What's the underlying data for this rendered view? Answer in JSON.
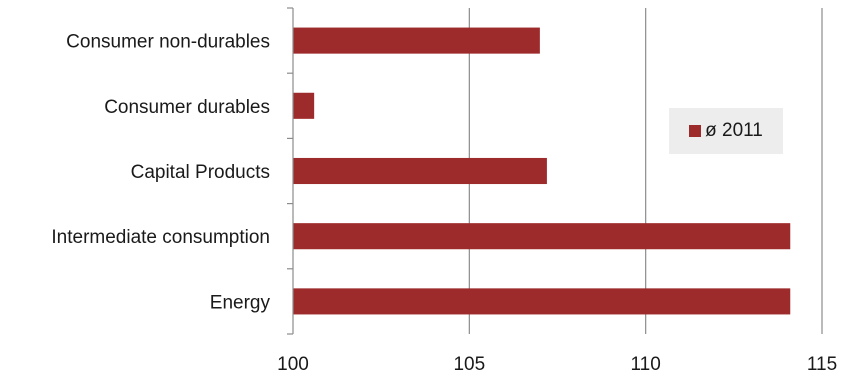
{
  "chart_data": {
    "type": "bar",
    "orientation": "horizontal",
    "title": "",
    "xlabel": "",
    "ylabel": "",
    "categories": [
      "Consumer non-durables",
      "Consumer durables",
      "Capital Products",
      "Intermediate consumption",
      "Energy"
    ],
    "series": [
      {
        "name": "ø 2011",
        "values": [
          107.0,
          100.6,
          107.2,
          114.1,
          114.1
        ]
      }
    ],
    "xlim": [
      100,
      115
    ],
    "xticks": [
      "100",
      "105",
      "110",
      "115"
    ],
    "grid": "vertical",
    "legend_position": "right",
    "colors": {
      "bar": "#9e2b2b",
      "grid": "#8c8c8c",
      "axis": "#8c8c8c",
      "legend_bg": "#ededed"
    }
  }
}
